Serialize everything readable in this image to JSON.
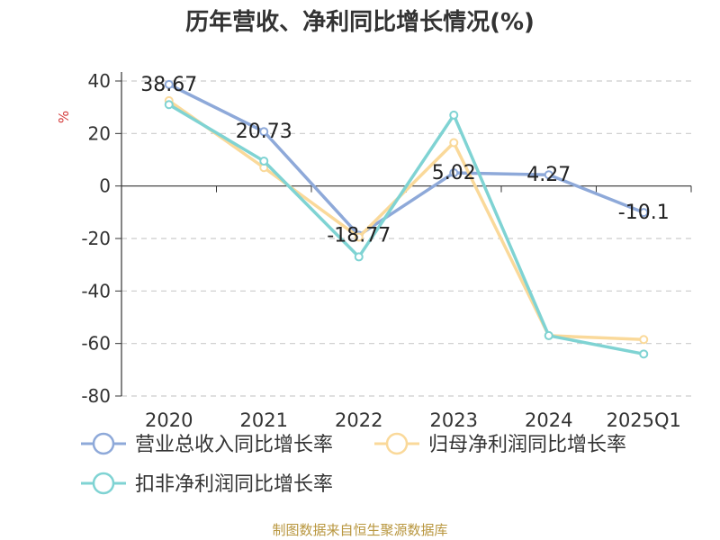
{
  "chart_data": {
    "type": "line",
    "title": "历年营收、净利同比增长情况(%)",
    "ylabel": "%",
    "ylim": [
      -80,
      40
    ],
    "y_ticks": [
      40,
      20,
      0,
      -20,
      -40,
      -60,
      -80
    ],
    "categories": [
      "2020",
      "2021",
      "2022",
      "2023",
      "2024",
      "2025Q1"
    ],
    "series": [
      {
        "name": "营业总收入同比增长率",
        "values": [
          38.67,
          20.73,
          -18.77,
          5.02,
          4.27,
          -10.1
        ],
        "color": "#8ea9d9",
        "show_labels": true
      },
      {
        "name": "归母净利润同比增长率",
        "values": [
          32.5,
          7.0,
          -19.5,
          16.5,
          -57.0,
          -58.5
        ],
        "color": "#fad99a",
        "show_labels": false
      },
      {
        "name": "扣非净利润同比增长率",
        "values": [
          31.0,
          9.5,
          -27.0,
          27.0,
          -57.0,
          -64.0
        ],
        "color": "#7fd3d3",
        "show_labels": false
      }
    ],
    "grid": true,
    "legend_position": "bottom-left"
  },
  "source": "制图数据来自恒生聚源数据库"
}
